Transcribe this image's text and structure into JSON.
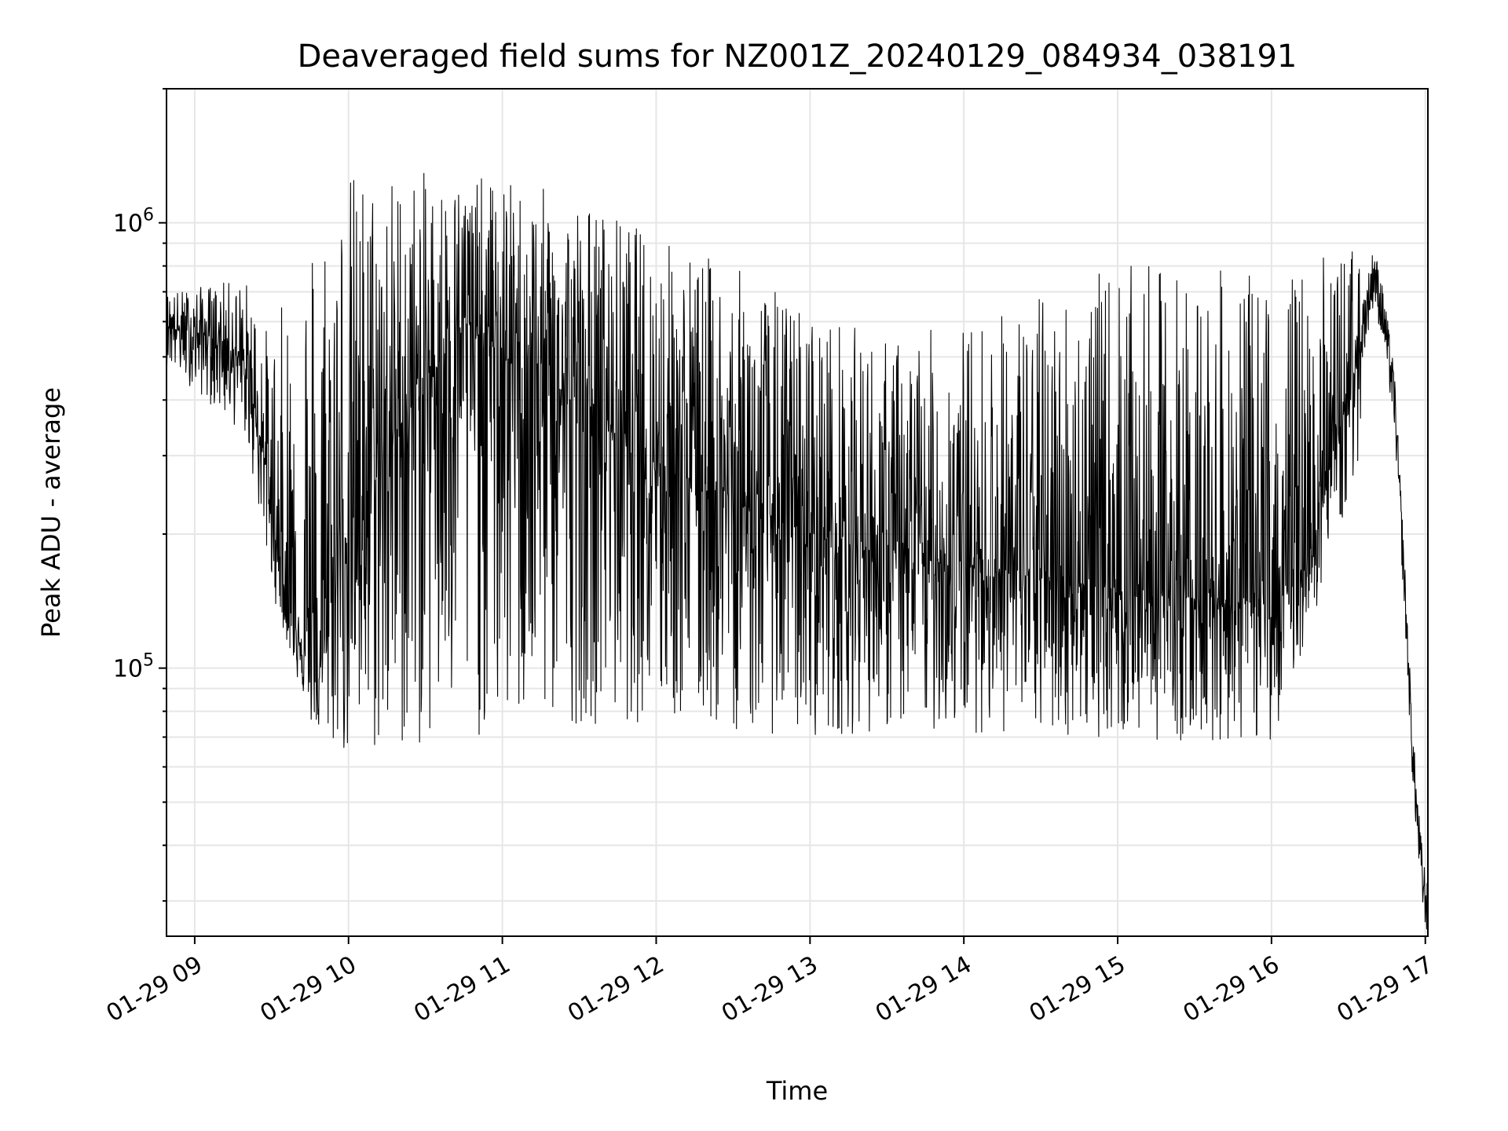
{
  "chart_data": {
    "type": "line",
    "title": "Deaveraged field sums for NZ001Z_20240129_084934_038191",
    "xlabel": "Time",
    "ylabel": "Peak ADU - average",
    "y_scale": "log",
    "ylim": [
      25000,
      2000000
    ],
    "xlim": [
      "2024-01-29 08:49",
      "2024-01-29 17:01"
    ],
    "grid": true,
    "line_color": "#000000",
    "x_ticks": [
      {
        "value": "2024-01-29 09:00",
        "label": "01-29 09"
      },
      {
        "value": "2024-01-29 10:00",
        "label": "01-29 10"
      },
      {
        "value": "2024-01-29 11:00",
        "label": "01-29 11"
      },
      {
        "value": "2024-01-29 12:00",
        "label": "01-29 12"
      },
      {
        "value": "2024-01-29 13:00",
        "label": "01-29 13"
      },
      {
        "value": "2024-01-29 14:00",
        "label": "01-29 14"
      },
      {
        "value": "2024-01-29 15:00",
        "label": "01-29 15"
      },
      {
        "value": "2024-01-29 16:00",
        "label": "01-29 16"
      },
      {
        "value": "2024-01-29 17:00",
        "label": "01-29 17"
      }
    ],
    "y_ticks": [
      {
        "value": 100000,
        "base": "10",
        "exp": "5"
      },
      {
        "value": 1000000,
        "base": "10",
        "exp": "6"
      }
    ],
    "series": [
      {
        "points": [
          [
            "2024-01-29 08:49",
            600000
          ],
          [
            "2024-01-29 08:56",
            560000
          ],
          [
            "2024-01-29 09:05",
            560000
          ],
          [
            "2024-01-29 09:15",
            520000
          ],
          [
            "2024-01-29 09:22",
            420000
          ],
          [
            "2024-01-29 09:27",
            300000
          ],
          [
            "2024-01-29 09:31",
            200000
          ],
          [
            "2024-01-29 09:36",
            140000
          ],
          [
            "2024-01-29 09:43",
            110000
          ],
          [
            "2024-01-29 09:48",
            90000
          ],
          [
            "2024-01-29 09:55",
            180000
          ],
          [
            "2024-01-29 10:20",
            350000
          ],
          [
            "2024-01-29 10:45",
            600000
          ],
          [
            "2024-01-29 11:10",
            450000
          ],
          [
            "2024-01-29 11:35",
            380000
          ],
          [
            "2024-01-29 12:00",
            300000
          ],
          [
            "2024-01-29 12:30",
            240000
          ],
          [
            "2024-01-29 13:00",
            200000
          ],
          [
            "2024-01-29 13:30",
            180000
          ],
          [
            "2024-01-29 14:00",
            170000
          ],
          [
            "2024-01-29 14:30",
            160000
          ],
          [
            "2024-01-29 15:00",
            150000
          ],
          [
            "2024-01-29 15:30",
            145000
          ],
          [
            "2024-01-29 16:00",
            140000
          ],
          [
            "2024-01-29 16:12",
            160000
          ],
          [
            "2024-01-29 16:22",
            280000
          ],
          [
            "2024-01-29 16:30",
            400000
          ],
          [
            "2024-01-29 16:36",
            600000
          ],
          [
            "2024-01-29 16:40",
            780000
          ],
          [
            "2024-01-29 16:44",
            600000
          ],
          [
            "2024-01-29 16:48",
            400000
          ],
          [
            "2024-01-29 16:52",
            150000
          ],
          [
            "2024-01-29 16:55",
            65000
          ],
          [
            "2024-01-29 16:57",
            45000
          ],
          [
            "2024-01-29 16:59",
            33000
          ],
          [
            "2024-01-29 17:00",
            31000
          ],
          [
            "2024-01-29 17:01",
            28000
          ]
        ],
        "range_min": [
          [
            "2024-01-29 08:49",
            480000
          ],
          [
            "2024-01-29 09:20",
            330000
          ],
          [
            "2024-01-29 09:30",
            150000
          ],
          [
            "2024-01-29 09:45",
            75000
          ],
          [
            "2024-01-29 10:00",
            60000
          ],
          [
            "2024-01-29 10:30",
            65000
          ],
          [
            "2024-01-29 11:00",
            70000
          ],
          [
            "2024-01-29 11:30",
            75000
          ],
          [
            "2024-01-29 12:00",
            75000
          ],
          [
            "2024-01-29 12:30",
            72000
          ],
          [
            "2024-01-29 13:00",
            70000
          ],
          [
            "2024-01-29 13:30",
            72000
          ],
          [
            "2024-01-29 14:00",
            72000
          ],
          [
            "2024-01-29 14:30",
            70000
          ],
          [
            "2024-01-29 15:00",
            70000
          ],
          [
            "2024-01-29 15:30",
            68000
          ],
          [
            "2024-01-29 16:00",
            68000
          ],
          [
            "2024-01-29 16:20",
            150000
          ],
          [
            "2024-01-29 16:35",
            300000
          ]
        ],
        "range_max": [
          [
            "2024-01-29 08:49",
            700000
          ],
          [
            "2024-01-29 09:20",
            750000
          ],
          [
            "2024-01-29 09:30",
            550000
          ],
          [
            "2024-01-29 09:45",
            1100000
          ],
          [
            "2024-01-29 10:00",
            1350000
          ],
          [
            "2024-01-29 10:30",
            1300000
          ],
          [
            "2024-01-29 11:00",
            1250000
          ],
          [
            "2024-01-29 11:30",
            1150000
          ],
          [
            "2024-01-29 12:00",
            950000
          ],
          [
            "2024-01-29 12:30",
            800000
          ],
          [
            "2024-01-29 13:00",
            650000
          ],
          [
            "2024-01-29 13:30",
            550000
          ],
          [
            "2024-01-29 14:00",
            600000
          ],
          [
            "2024-01-29 14:30",
            700000
          ],
          [
            "2024-01-29 15:00",
            800000
          ],
          [
            "2024-01-29 15:30",
            800000
          ],
          [
            "2024-01-29 16:00",
            750000
          ],
          [
            "2024-01-29 16:20",
            850000
          ],
          [
            "2024-01-29 16:35",
            900000
          ]
        ]
      }
    ]
  }
}
